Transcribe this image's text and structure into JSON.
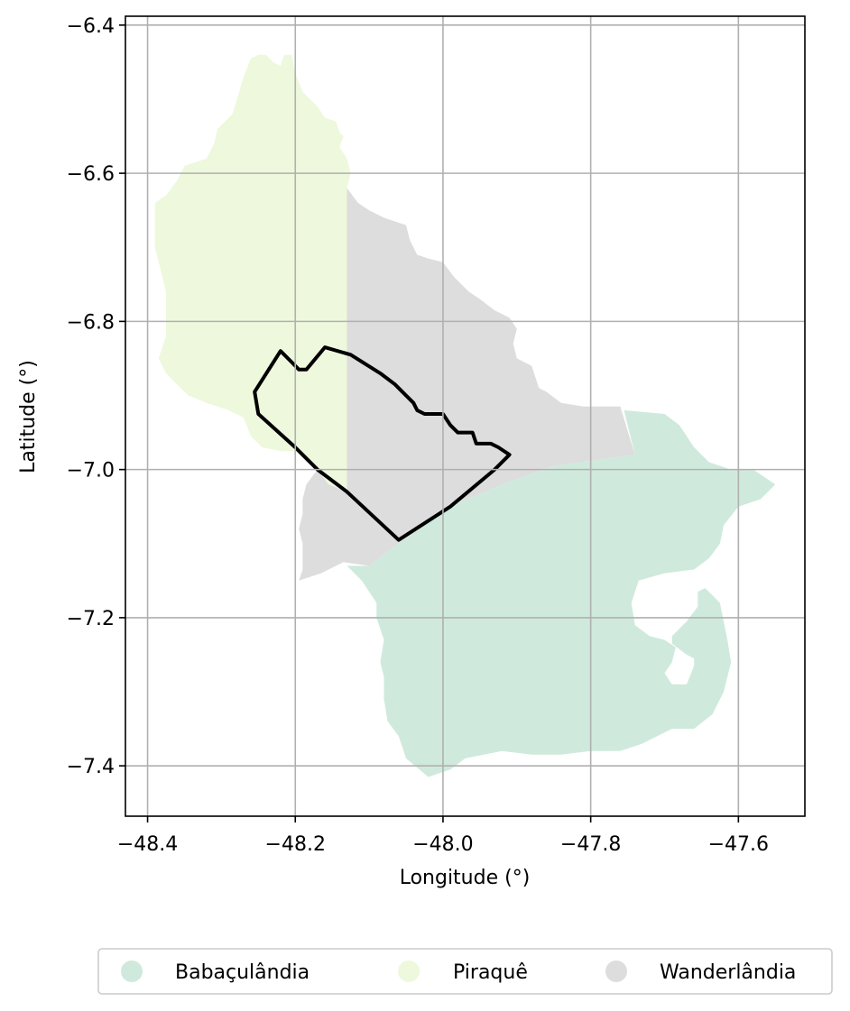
{
  "chart_data": {
    "type": "map",
    "xlabel": "Longitude (°)",
    "ylabel": "Latitude (°)",
    "xlim": [
      -48.43,
      -47.51
    ],
    "ylim": [
      -7.468,
      -6.388
    ],
    "xticks": [
      -48.4,
      -48.2,
      -48.0,
      -47.8,
      -47.6
    ],
    "yticks": [
      -6.4,
      -6.6,
      -6.8,
      -7.0,
      -7.2,
      -7.4
    ],
    "xtick_labels": [
      "−48.4",
      "−48.2",
      "−48.0",
      "−47.8",
      "−47.6"
    ],
    "ytick_labels": [
      "−6.4",
      "−6.6",
      "−6.8",
      "−7.0",
      "−7.2",
      "−7.4"
    ],
    "grid": true,
    "legend_position": "bottom-center",
    "regions": [
      {
        "name": "Babaçulândia",
        "color": "#cfeadc",
        "polygon": [
          [
            -48.06,
            -7.1
          ],
          [
            -47.99,
            -7.05
          ],
          [
            -47.92,
            -7.02
          ],
          [
            -47.85,
            -6.995
          ],
          [
            -47.74,
            -6.98
          ],
          [
            -47.755,
            -6.92
          ],
          [
            -47.7,
            -6.925
          ],
          [
            -47.68,
            -6.94
          ],
          [
            -47.66,
            -6.97
          ],
          [
            -47.64,
            -6.99
          ],
          [
            -47.61,
            -7.0
          ],
          [
            -47.58,
            -7.0
          ],
          [
            -47.55,
            -7.02
          ],
          [
            -47.57,
            -7.04
          ],
          [
            -47.6,
            -7.05
          ],
          [
            -47.62,
            -7.075
          ],
          [
            -47.625,
            -7.1
          ],
          [
            -47.64,
            -7.12
          ],
          [
            -47.66,
            -7.135
          ],
          [
            -47.7,
            -7.14
          ],
          [
            -47.735,
            -7.15
          ],
          [
            -47.745,
            -7.18
          ],
          [
            -47.74,
            -7.21
          ],
          [
            -47.72,
            -7.225
          ],
          [
            -47.7,
            -7.23
          ],
          [
            -47.685,
            -7.24
          ],
          [
            -47.69,
            -7.26
          ],
          [
            -47.7,
            -7.275
          ],
          [
            -47.69,
            -7.29
          ],
          [
            -47.67,
            -7.29
          ],
          [
            -47.66,
            -7.265
          ],
          [
            -47.66,
            -7.255
          ],
          [
            -47.67,
            -7.25
          ],
          [
            -47.69,
            -7.235
          ],
          [
            -47.69,
            -7.225
          ],
          [
            -47.67,
            -7.205
          ],
          [
            -47.655,
            -7.185
          ],
          [
            -47.655,
            -7.165
          ],
          [
            -47.645,
            -7.16
          ],
          [
            -47.625,
            -7.18
          ],
          [
            -47.615,
            -7.23
          ],
          [
            -47.61,
            -7.26
          ],
          [
            -47.62,
            -7.3
          ],
          [
            -47.635,
            -7.33
          ],
          [
            -47.66,
            -7.35
          ],
          [
            -47.69,
            -7.35
          ],
          [
            -47.73,
            -7.37
          ],
          [
            -47.76,
            -7.38
          ],
          [
            -47.8,
            -7.38
          ],
          [
            -47.84,
            -7.385
          ],
          [
            -47.88,
            -7.385
          ],
          [
            -47.92,
            -7.38
          ],
          [
            -47.97,
            -7.39
          ],
          [
            -47.99,
            -7.405
          ],
          [
            -48.02,
            -7.415
          ],
          [
            -48.05,
            -7.39
          ],
          [
            -48.06,
            -7.36
          ],
          [
            -48.075,
            -7.34
          ],
          [
            -48.08,
            -7.31
          ],
          [
            -48.08,
            -7.28
          ],
          [
            -48.085,
            -7.26
          ],
          [
            -48.08,
            -7.23
          ],
          [
            -48.09,
            -7.2
          ],
          [
            -48.09,
            -7.18
          ],
          [
            -48.11,
            -7.15
          ],
          [
            -48.13,
            -7.13
          ],
          [
            -48.1,
            -7.13
          ]
        ]
      },
      {
        "name": "Piraquê",
        "color": "#eef8dc",
        "polygon": [
          [
            -48.39,
            -6.64
          ],
          [
            -48.375,
            -6.63
          ],
          [
            -48.36,
            -6.61
          ],
          [
            -48.35,
            -6.59
          ],
          [
            -48.32,
            -6.58
          ],
          [
            -48.31,
            -6.56
          ],
          [
            -48.305,
            -6.54
          ],
          [
            -48.285,
            -6.52
          ],
          [
            -48.27,
            -6.47
          ],
          [
            -48.26,
            -6.445
          ],
          [
            -48.25,
            -6.44
          ],
          [
            -48.24,
            -6.44
          ],
          [
            -48.23,
            -6.45
          ],
          [
            -48.22,
            -6.455
          ],
          [
            -48.215,
            -6.44
          ],
          [
            -48.205,
            -6.44
          ],
          [
            -48.2,
            -6.465
          ],
          [
            -48.19,
            -6.49
          ],
          [
            -48.18,
            -6.5
          ],
          [
            -48.17,
            -6.51
          ],
          [
            -48.16,
            -6.525
          ],
          [
            -48.145,
            -6.53
          ],
          [
            -48.14,
            -6.545
          ],
          [
            -48.135,
            -6.55
          ],
          [
            -48.14,
            -6.565
          ],
          [
            -48.13,
            -6.58
          ],
          [
            -48.125,
            -6.6
          ],
          [
            -48.13,
            -6.62
          ],
          [
            -48.13,
            -7.03
          ],
          [
            -48.155,
            -7.02
          ],
          [
            -48.17,
            -7.0
          ],
          [
            -48.185,
            -6.99
          ],
          [
            -48.2,
            -6.975
          ],
          [
            -48.22,
            -6.975
          ],
          [
            -48.245,
            -6.97
          ],
          [
            -48.26,
            -6.955
          ],
          [
            -48.27,
            -6.93
          ],
          [
            -48.29,
            -6.92
          ],
          [
            -48.32,
            -6.91
          ],
          [
            -48.345,
            -6.9
          ],
          [
            -48.36,
            -6.885
          ],
          [
            -48.375,
            -6.87
          ],
          [
            -48.385,
            -6.85
          ],
          [
            -48.375,
            -6.82
          ],
          [
            -48.375,
            -6.76
          ],
          [
            -48.39,
            -6.7
          ]
        ]
      },
      {
        "name": "Wanderlândia",
        "color": "#dddddd",
        "polygon": [
          [
            -48.13,
            -6.62
          ],
          [
            -48.115,
            -6.64
          ],
          [
            -48.1,
            -6.65
          ],
          [
            -48.08,
            -6.66
          ],
          [
            -48.065,
            -6.665
          ],
          [
            -48.05,
            -6.67
          ],
          [
            -48.045,
            -6.69
          ],
          [
            -48.035,
            -6.71
          ],
          [
            -48.02,
            -6.715
          ],
          [
            -48.0,
            -6.72
          ],
          [
            -47.985,
            -6.74
          ],
          [
            -47.965,
            -6.76
          ],
          [
            -47.95,
            -6.77
          ],
          [
            -47.93,
            -6.785
          ],
          [
            -47.91,
            -6.795
          ],
          [
            -47.9,
            -6.81
          ],
          [
            -47.905,
            -6.83
          ],
          [
            -47.9,
            -6.85
          ],
          [
            -47.88,
            -6.86
          ],
          [
            -47.87,
            -6.89
          ],
          [
            -47.86,
            -6.895
          ],
          [
            -47.84,
            -6.91
          ],
          [
            -47.81,
            -6.915
          ],
          [
            -47.79,
            -6.915
          ],
          [
            -47.76,
            -6.915
          ],
          [
            -47.74,
            -6.98
          ],
          [
            -47.85,
            -6.995
          ],
          [
            -47.92,
            -7.02
          ],
          [
            -47.99,
            -7.05
          ],
          [
            -48.06,
            -7.1
          ],
          [
            -48.1,
            -7.13
          ],
          [
            -48.135,
            -7.125
          ],
          [
            -48.165,
            -7.14
          ],
          [
            -48.195,
            -7.15
          ],
          [
            -48.19,
            -7.135
          ],
          [
            -48.19,
            -7.1
          ],
          [
            -48.195,
            -7.08
          ],
          [
            -48.19,
            -7.06
          ],
          [
            -48.19,
            -7.04
          ],
          [
            -48.185,
            -7.02
          ],
          [
            -48.17,
            -7.0
          ],
          [
            -48.155,
            -7.02
          ],
          [
            -48.13,
            -7.03
          ]
        ]
      }
    ],
    "outline": {
      "color": "#000000",
      "polygon": [
        [
          -48.255,
          -6.895
        ],
        [
          -48.22,
          -6.84
        ],
        [
          -48.205,
          -6.855
        ],
        [
          -48.195,
          -6.865
        ],
        [
          -48.185,
          -6.865
        ],
        [
          -48.16,
          -6.835
        ],
        [
          -48.125,
          -6.845
        ],
        [
          -48.085,
          -6.87
        ],
        [
          -48.065,
          -6.885
        ],
        [
          -48.055,
          -6.895
        ],
        [
          -48.04,
          -6.91
        ],
        [
          -48.035,
          -6.92
        ],
        [
          -48.025,
          -6.925
        ],
        [
          -48.0,
          -6.925
        ],
        [
          -47.99,
          -6.94
        ],
        [
          -47.98,
          -6.95
        ],
        [
          -47.96,
          -6.95
        ],
        [
          -47.955,
          -6.965
        ],
        [
          -47.935,
          -6.965
        ],
        [
          -47.925,
          -6.97
        ],
        [
          -47.91,
          -6.98
        ],
        [
          -47.93,
          -7.0
        ],
        [
          -47.99,
          -7.05
        ],
        [
          -48.06,
          -7.095
        ],
        [
          -48.13,
          -7.03
        ],
        [
          -48.17,
          -7.0
        ],
        [
          -48.2,
          -6.97
        ],
        [
          -48.25,
          -6.925
        ]
      ]
    },
    "legend": [
      {
        "label": "Babaçulândia",
        "color": "#cfeadc"
      },
      {
        "label": "Piraquê",
        "color": "#eef8dc"
      },
      {
        "label": "Wanderlândia",
        "color": "#dddddd"
      }
    ]
  }
}
